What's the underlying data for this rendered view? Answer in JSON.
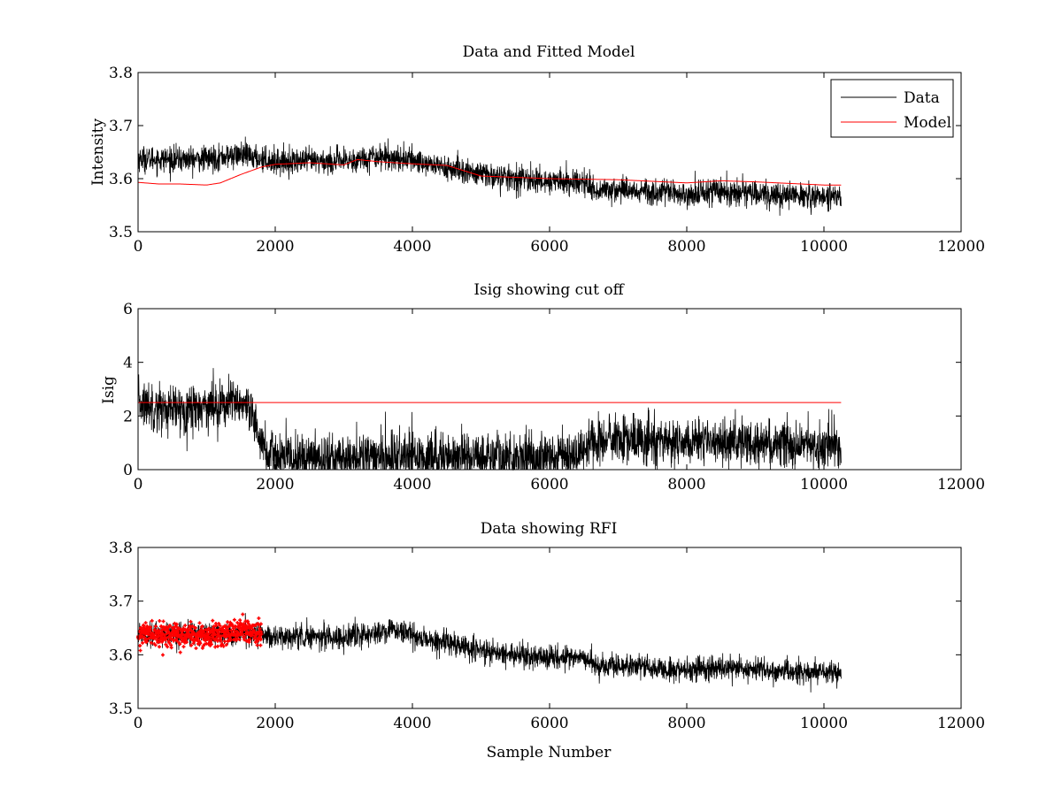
{
  "figure_title": "",
  "chart_data": [
    {
      "type": "line",
      "title": "Data and Fitted Model",
      "xlabel": "",
      "ylabel": "Intensity",
      "xlim": [
        0,
        12000
      ],
      "ylim": [
        3.5,
        3.8
      ],
      "xticks": [
        0,
        2000,
        4000,
        6000,
        8000,
        10000,
        12000
      ],
      "yticks": [
        3.5,
        3.6,
        3.7,
        3.8
      ],
      "xtick_labels": [
        "0",
        "2000",
        "4000",
        "6000",
        "8000",
        "10000",
        "12000"
      ],
      "ytick_labels": [
        "3.5",
        "3.6",
        "3.7",
        "3.8"
      ],
      "grid": false,
      "legend": {
        "position": "top-right",
        "entries": [
          "Data",
          "Model"
        ]
      },
      "series": [
        {
          "name": "Data",
          "color": "#000000",
          "style": "noisy-line",
          "noise": 0.012,
          "x": [
            0,
            500,
            1000,
            1500,
            2000,
            2500,
            3000,
            3500,
            4000,
            4500,
            5000,
            5500,
            6000,
            6500,
            6700,
            7000,
            7500,
            8000,
            8500,
            9000,
            9500,
            10000,
            10250
          ],
          "y": [
            3.638,
            3.636,
            3.637,
            3.645,
            3.632,
            3.633,
            3.632,
            3.643,
            3.635,
            3.62,
            3.608,
            3.6,
            3.595,
            3.593,
            3.578,
            3.58,
            3.576,
            3.57,
            3.577,
            3.572,
            3.568,
            3.567,
            3.566
          ]
        },
        {
          "name": "Model",
          "color": "#ff0000",
          "style": "line",
          "x": [
            0,
            300,
            600,
            1000,
            1200,
            1500,
            1800,
            2000,
            2500,
            3000,
            3200,
            3500,
            4000,
            4500,
            5000,
            6000,
            7000,
            8000,
            8500,
            9000,
            10000,
            10250
          ],
          "y": [
            3.593,
            3.59,
            3.59,
            3.588,
            3.592,
            3.608,
            3.622,
            3.627,
            3.63,
            3.626,
            3.636,
            3.632,
            3.628,
            3.625,
            3.605,
            3.6,
            3.598,
            3.592,
            3.596,
            3.594,
            3.588,
            3.588
          ]
        }
      ]
    },
    {
      "type": "line",
      "title": "Isig showing cut off",
      "xlabel": "",
      "ylabel": "Isig",
      "xlim": [
        0,
        12000
      ],
      "ylim": [
        0,
        6
      ],
      "xticks": [
        0,
        2000,
        4000,
        6000,
        8000,
        10000,
        12000
      ],
      "yticks": [
        0,
        2,
        4,
        6
      ],
      "xtick_labels": [
        "0",
        "2000",
        "4000",
        "6000",
        "8000",
        "10000",
        "12000"
      ],
      "ytick_labels": [
        "0",
        "2",
        "4",
        "6"
      ],
      "grid": false,
      "series": [
        {
          "name": "Isig",
          "color": "#000000",
          "style": "noisy-line",
          "noise": 0.45,
          "floor": 0,
          "x": [
            0,
            500,
            1000,
            1500,
            1700,
            1900,
            2500,
            3500,
            4500,
            5500,
            6500,
            6600,
            7000,
            8000,
            9000,
            10000,
            10250
          ],
          "y": [
            2.5,
            2.2,
            2.4,
            2.5,
            1.7,
            0.5,
            0.4,
            0.45,
            0.5,
            0.45,
            0.6,
            1.1,
            1.1,
            1.0,
            1.0,
            0.9,
            0.9
          ]
        },
        {
          "name": "Cutoff",
          "color": "#ff0000",
          "style": "line",
          "x": [
            0,
            10250
          ],
          "y": [
            2.5,
            2.5
          ]
        }
      ]
    },
    {
      "type": "line",
      "title": "Data showing RFI",
      "xlabel": "Sample Number",
      "ylabel": "",
      "xlim": [
        0,
        12000
      ],
      "ylim": [
        3.5,
        3.8
      ],
      "xticks": [
        0,
        2000,
        4000,
        6000,
        8000,
        10000,
        12000
      ],
      "yticks": [
        3.5,
        3.6,
        3.7,
        3.8
      ],
      "xtick_labels": [
        "0",
        "2000",
        "4000",
        "6000",
        "8000",
        "10000",
        "12000"
      ],
      "ytick_labels": [
        "3.5",
        "3.6",
        "3.7",
        "3.8"
      ],
      "grid": false,
      "series": [
        {
          "name": "Data",
          "color": "#000000",
          "style": "noisy-line",
          "noise": 0.011,
          "x": [
            0,
            1800,
            2000,
            2500,
            3000,
            3500,
            3700,
            4000,
            4500,
            5000,
            5500,
            6000,
            6500,
            6700,
            7000,
            7500,
            8000,
            8500,
            9000,
            9500,
            10000,
            10250
          ],
          "y": [
            3.638,
            3.64,
            3.632,
            3.635,
            3.632,
            3.64,
            3.648,
            3.635,
            3.62,
            3.608,
            3.6,
            3.595,
            3.593,
            3.578,
            3.58,
            3.576,
            3.57,
            3.577,
            3.572,
            3.568,
            3.567,
            3.566
          ]
        },
        {
          "name": "RFI",
          "color": "#ff0000",
          "style": "markers",
          "noise": 0.011,
          "x": [
            0,
            500,
            1000,
            1500,
            1800
          ],
          "y": [
            3.638,
            3.637,
            3.636,
            3.645,
            3.64
          ]
        }
      ]
    }
  ]
}
